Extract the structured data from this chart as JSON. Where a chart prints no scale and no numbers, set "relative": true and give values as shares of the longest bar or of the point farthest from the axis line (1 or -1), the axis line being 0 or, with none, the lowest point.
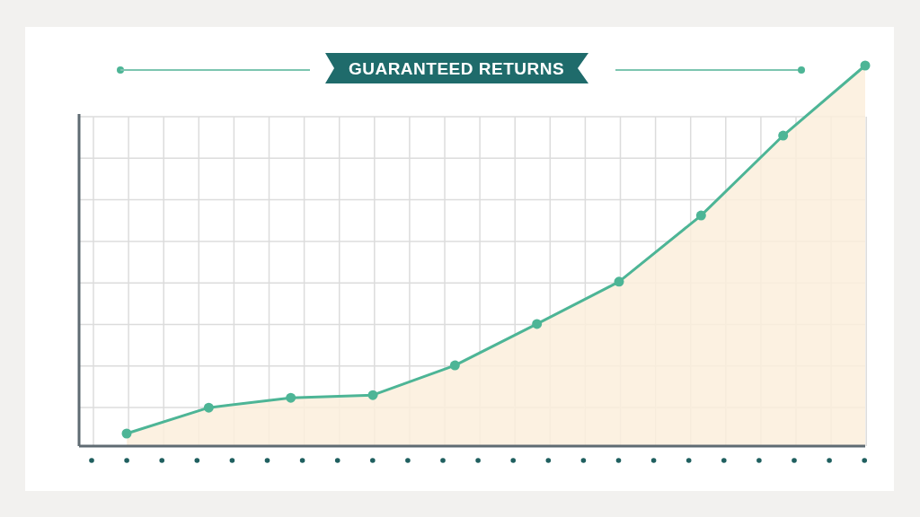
{
  "chart_data": {
    "type": "area",
    "title": "GUARANTEED RETURNS",
    "relative": true,
    "categories": [
      null,
      null,
      null,
      null,
      null,
      null,
      null,
      null,
      null,
      null
    ],
    "series": [
      {
        "color": "#4db596",
        "values": [
          0.033,
          0.101,
          0.127,
          0.134,
          0.212,
          0.321,
          0.432,
          0.606,
          0.816,
          1
        ]
      }
    ],
    "grid": true,
    "marker": "circle"
  }
}
